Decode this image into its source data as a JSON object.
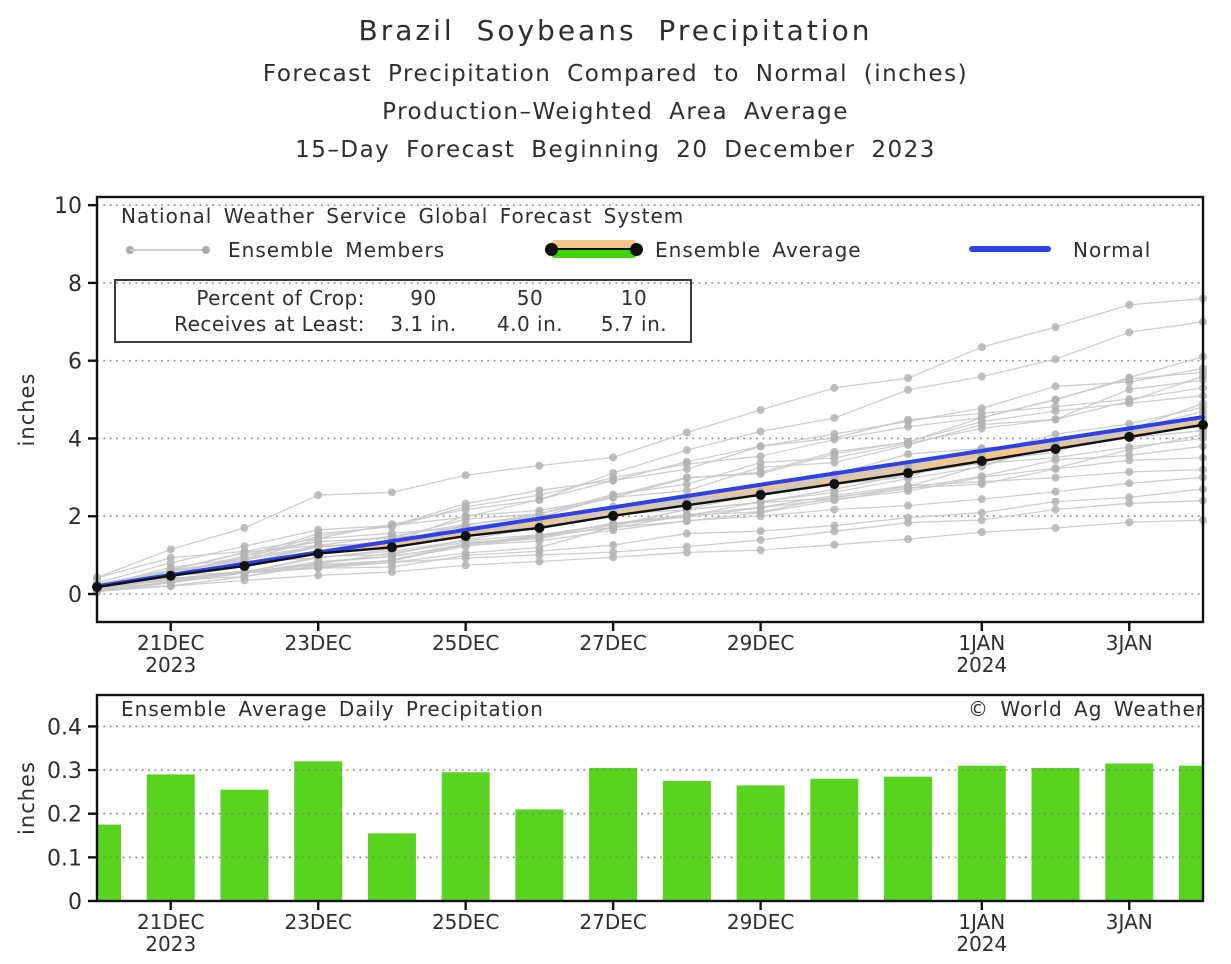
{
  "page": {
    "background": "#ffffff",
    "text_color": "#2e2e2e",
    "frame_color": "#111111",
    "grid_color": "#8f8f8f"
  },
  "titles": {
    "line1": "Brazil Soybeans Precipitation",
    "line2": "Forecast Precipitation Compared to Normal (inches)",
    "line3": "Production–Weighted Area Average",
    "line4": "15–Day Forecast Beginning 20 December 2023"
  },
  "top_chart": {
    "source_label": "National Weather Service Global Forecast System",
    "legend": {
      "members_label": "Ensemble Members",
      "average_label": "Ensemble Average",
      "normal_label": "Normal"
    },
    "crop_box": {
      "row1_label": "Percent of Crop:",
      "row2_label": "Receives at Least:",
      "percents": [
        "90",
        "50",
        "10"
      ],
      "amounts": [
        "3.1 in.",
        "4.0 in.",
        "5.7 in."
      ]
    }
  },
  "bottom_chart": {
    "title": "Ensemble Average Daily Precipitation",
    "credit": "© World Ag Weather"
  },
  "chart_data": [
    {
      "type": "line",
      "title": "National Weather Service Global Forecast System",
      "ylabel": "inches",
      "ylim": [
        -0.72,
        10.21
      ],
      "yticks": [
        0,
        2,
        4,
        6,
        8,
        10
      ],
      "grid": "dotted-horizontal",
      "legend_position": "top-inside",
      "x": [
        "20DEC",
        "21DEC",
        "22DEC",
        "23DEC",
        "24DEC",
        "25DEC",
        "26DEC",
        "27DEC",
        "28DEC",
        "29DEC",
        "30DEC",
        "31DEC",
        "1JAN",
        "2JAN",
        "3JAN",
        "4JAN"
      ],
      "xticks": [
        {
          "day": 1,
          "label": "21DEC",
          "sub": "2023"
        },
        {
          "day": 3,
          "label": "23DEC"
        },
        {
          "day": 5,
          "label": "25DEC"
        },
        {
          "day": 7,
          "label": "27DEC"
        },
        {
          "day": 9,
          "label": "29DEC"
        },
        {
          "day": 12,
          "label": "1JAN",
          "sub": "2024"
        },
        {
          "day": 14,
          "label": "3JAN"
        }
      ],
      "series": [
        {
          "name": "Ensemble Members",
          "color": "#c9c9c9",
          "dot_color": "#b3b3b3",
          "final_values": [
            7.6,
            7.0,
            6.1,
            5.8,
            5.7,
            5.6,
            5.5,
            5.3,
            5.1,
            4.9,
            4.8,
            4.7,
            4.6,
            4.5,
            4.4,
            4.3,
            4.2,
            4.1,
            4.0,
            3.8,
            3.5,
            3.2,
            3.0,
            2.7,
            2.4,
            1.9
          ]
        },
        {
          "name": "Ensemble Average",
          "color": "#111111",
          "values": [
            0.18,
            0.47,
            0.72,
            1.04,
            1.2,
            1.49,
            1.7,
            2.01,
            2.28,
            2.55,
            2.83,
            3.11,
            3.42,
            3.73,
            4.04,
            4.35
          ]
        },
        {
          "name": "Normal",
          "color": "#2d41e8",
          "values": [
            0.2,
            0.49,
            0.78,
            1.07,
            1.36,
            1.65,
            1.94,
            2.23,
            2.52,
            2.81,
            3.1,
            3.39,
            3.68,
            3.97,
            4.26,
            4.55
          ]
        }
      ],
      "band": {
        "between": [
          "Normal",
          "Ensemble Average"
        ],
        "color": "#f2c787",
        "legend_green": "#3ed400"
      }
    },
    {
      "type": "bar",
      "title": "Ensemble Average Daily Precipitation",
      "ylabel": "inches",
      "ylim": [
        0,
        0.472
      ],
      "yticks": [
        0,
        0.1,
        0.2,
        0.3,
        0.4
      ],
      "bar_color": "#58d41e",
      "categories": [
        "20DEC",
        "21DEC",
        "22DEC",
        "23DEC",
        "24DEC",
        "25DEC",
        "26DEC",
        "27DEC",
        "28DEC",
        "29DEC",
        "30DEC",
        "31DEC",
        "1JAN",
        "2JAN",
        "3JAN",
        "4JAN"
      ],
      "values": [
        0.175,
        0.29,
        0.255,
        0.32,
        0.155,
        0.295,
        0.21,
        0.305,
        0.275,
        0.265,
        0.28,
        0.285,
        0.31,
        0.305,
        0.315,
        0.31
      ],
      "xticks": [
        {
          "day": 1,
          "label": "21DEC",
          "sub": "2023"
        },
        {
          "day": 3,
          "label": "23DEC"
        },
        {
          "day": 5,
          "label": "25DEC"
        },
        {
          "day": 7,
          "label": "27DEC"
        },
        {
          "day": 9,
          "label": "29DEC"
        },
        {
          "day": 12,
          "label": "1JAN",
          "sub": "2024"
        },
        {
          "day": 14,
          "label": "3JAN"
        }
      ]
    }
  ]
}
